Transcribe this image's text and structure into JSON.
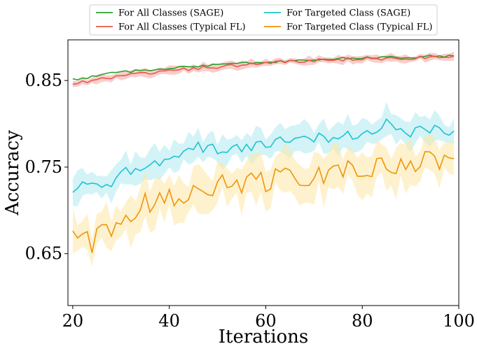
{
  "chart_data": {
    "type": "line",
    "title": "",
    "xlabel": "Iterations",
    "ylabel": "Accuracy",
    "xlim": [
      19,
      100
    ],
    "ylim": [
      0.59,
      0.897
    ],
    "xticks": [
      20,
      40,
      60,
      80,
      100
    ],
    "yticks": [
      0.65,
      0.75,
      0.85
    ],
    "ytick_labels": [
      "0.65",
      "0.75",
      "0.85"
    ],
    "grid": false,
    "legend_placement": "top-center-outside",
    "series": [
      {
        "name": "For All Classes (SAGE)",
        "color": "#2ca02c",
        "band_color": "",
        "anchors": [
          [
            20,
            0.851
          ],
          [
            25,
            0.855
          ],
          [
            30,
            0.86
          ],
          [
            40,
            0.864
          ],
          [
            50,
            0.868
          ],
          [
            60,
            0.871
          ],
          [
            70,
            0.874
          ],
          [
            80,
            0.876
          ],
          [
            90,
            0.877
          ],
          [
            99,
            0.879
          ]
        ],
        "noise": 0.0015,
        "band": 0.002
      },
      {
        "name": "For All Classes (Typical FL)",
        "color": "#e8584b",
        "band_color": "#f4a6a0",
        "anchors": [
          [
            20,
            0.847
          ],
          [
            25,
            0.851
          ],
          [
            30,
            0.856
          ],
          [
            40,
            0.861
          ],
          [
            50,
            0.866
          ],
          [
            60,
            0.87
          ],
          [
            70,
            0.873
          ],
          [
            80,
            0.875
          ],
          [
            90,
            0.876
          ],
          [
            99,
            0.878
          ]
        ],
        "noise": 0.002,
        "band": 0.004
      },
      {
        "name": "For Targeted Class (SAGE)",
        "color": "#1fc3d1",
        "band_color": "#aee9f0",
        "anchors": [
          [
            20,
            0.721
          ],
          [
            22,
            0.734
          ],
          [
            27,
            0.724
          ],
          [
            30,
            0.742
          ],
          [
            35,
            0.752
          ],
          [
            40,
            0.758
          ],
          [
            45,
            0.775
          ],
          [
            50,
            0.77
          ],
          [
            55,
            0.772
          ],
          [
            60,
            0.778
          ],
          [
            65,
            0.78
          ],
          [
            70,
            0.785
          ],
          [
            75,
            0.784
          ],
          [
            80,
            0.788
          ],
          [
            83,
            0.79
          ],
          [
            85,
            0.8
          ],
          [
            90,
            0.79
          ],
          [
            95,
            0.796
          ],
          [
            99,
            0.789
          ]
        ],
        "noise": 0.006,
        "band": 0.015
      },
      {
        "name": "For Targeted Class (Typical FL)",
        "color": "#f0940a",
        "band_color": "#fde7a6",
        "anchors": [
          [
            20,
            0.668
          ],
          [
            22,
            0.667
          ],
          [
            24,
            0.656
          ],
          [
            26,
            0.68
          ],
          [
            28,
            0.668
          ],
          [
            30,
            0.69
          ],
          [
            35,
            0.708
          ],
          [
            40,
            0.715
          ],
          [
            45,
            0.725
          ],
          [
            50,
            0.728
          ],
          [
            55,
            0.734
          ],
          [
            60,
            0.735
          ],
          [
            65,
            0.74
          ],
          [
            70,
            0.742
          ],
          [
            75,
            0.745
          ],
          [
            80,
            0.748
          ],
          [
            85,
            0.75
          ],
          [
            90,
            0.752
          ],
          [
            95,
            0.757
          ],
          [
            99,
            0.763
          ]
        ],
        "noise": 0.014,
        "band": 0.022
      }
    ]
  }
}
